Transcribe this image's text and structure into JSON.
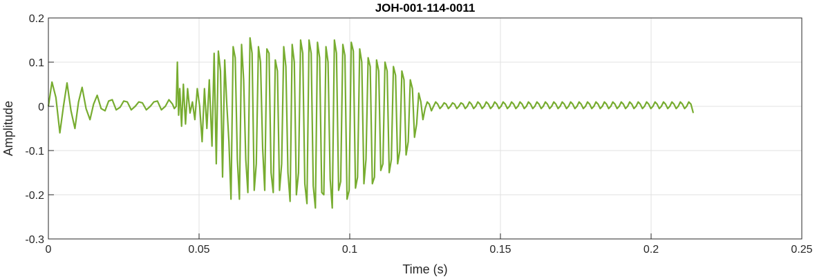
{
  "chart_data": {
    "type": "line",
    "title": "JOH-001-114-0011",
    "xlabel": "Time (s)",
    "ylabel": "Amplitude",
    "xlim": [
      0,
      0.25
    ],
    "ylim": [
      -0.3,
      0.2
    ],
    "x_ticks": [
      0,
      0.05,
      0.1,
      0.15,
      0.2,
      0.25
    ],
    "x_tick_labels": [
      "0",
      "0.05",
      "0.1",
      "0.15",
      "0.2",
      "0.25"
    ],
    "y_ticks": [
      -0.3,
      -0.2,
      -0.1,
      0,
      0.1,
      0.2
    ],
    "y_tick_labels": [
      "-0.3",
      "-0.2",
      "-0.1",
      "0",
      "0.1",
      "0.2"
    ],
    "grid": true,
    "line_color": "#77ac30",
    "series": [
      {
        "x": [
          0.0,
          0.0012,
          0.0025,
          0.0038,
          0.005,
          0.0062,
          0.0075,
          0.0088,
          0.01,
          0.0112,
          0.0125,
          0.0138,
          0.015,
          0.0162,
          0.0175,
          0.0188,
          0.02,
          0.0212,
          0.0225,
          0.0238,
          0.025,
          0.0262,
          0.0275,
          0.0288,
          0.03,
          0.0312,
          0.0325,
          0.0338,
          0.035,
          0.0362,
          0.0375,
          0.0388,
          0.04,
          0.0412,
          0.0418,
          0.0424,
          0.0428,
          0.0432,
          0.0436,
          0.0442,
          0.0448,
          0.0455,
          0.0462,
          0.047,
          0.0478,
          0.0486,
          0.0494,
          0.0502,
          0.051,
          0.0518,
          0.0526,
          0.0534,
          0.0543,
          0.055,
          0.0557,
          0.0564,
          0.0571,
          0.0578,
          0.0585,
          0.0592,
          0.0599,
          0.0606,
          0.0613,
          0.062,
          0.0627,
          0.0634,
          0.0641,
          0.0648,
          0.0655,
          0.0662,
          0.0669,
          0.0676,
          0.0683,
          0.069,
          0.0697,
          0.0704,
          0.0711,
          0.0718,
          0.0725,
          0.0732,
          0.0739,
          0.0746,
          0.0753,
          0.076,
          0.0767,
          0.0774,
          0.0781,
          0.0788,
          0.0795,
          0.0802,
          0.0809,
          0.0816,
          0.0823,
          0.083,
          0.0837,
          0.0844,
          0.0851,
          0.0858,
          0.0865,
          0.0872,
          0.0879,
          0.0886,
          0.0893,
          0.09,
          0.0907,
          0.0914,
          0.0921,
          0.0928,
          0.0935,
          0.0942,
          0.0949,
          0.0956,
          0.0963,
          0.097,
          0.0977,
          0.0984,
          0.0991,
          0.0998,
          0.1005,
          0.1012,
          0.1019,
          0.1026,
          0.1033,
          0.104,
          0.1047,
          0.1054,
          0.1061,
          0.1068,
          0.1075,
          0.1082,
          0.1089,
          0.1096,
          0.1103,
          0.111,
          0.1117,
          0.1124,
          0.1131,
          0.1138,
          0.1145,
          0.1152,
          0.1159,
          0.1166,
          0.1173,
          0.118,
          0.1187,
          0.1194,
          0.1201,
          0.1208,
          0.1215,
          0.1222,
          0.1229,
          0.1236,
          0.1243,
          0.125,
          0.1257,
          0.1264,
          0.1271,
          0.1278,
          0.1285,
          0.1292,
          0.1299,
          0.1306,
          0.1313,
          0.132,
          0.1327,
          0.1334,
          0.1341,
          0.1348,
          0.1355,
          0.1362,
          0.1369,
          0.1376,
          0.1383,
          0.139,
          0.1397,
          0.1404,
          0.1411,
          0.1418,
          0.1425,
          0.1432,
          0.1439,
          0.1446,
          0.1453,
          0.146,
          0.1467,
          0.1474,
          0.1481,
          0.1488,
          0.1495,
          0.1502,
          0.1509,
          0.1516,
          0.1523,
          0.153,
          0.1537,
          0.1544,
          0.1551,
          0.1558,
          0.1565,
          0.1572,
          0.1579,
          0.1586,
          0.1593,
          0.16,
          0.1607,
          0.1614,
          0.1621,
          0.1628,
          0.1635,
          0.1642,
          0.1649,
          0.1656,
          0.1663,
          0.167,
          0.1677,
          0.1684,
          0.1691,
          0.1698,
          0.1705,
          0.1712,
          0.1719,
          0.1726,
          0.1733,
          0.174,
          0.1747,
          0.1754,
          0.1761,
          0.1768,
          0.1775,
          0.1782,
          0.1789,
          0.1796,
          0.1803,
          0.181,
          0.1817,
          0.1824,
          0.1831,
          0.1838,
          0.1845,
          0.1852,
          0.1859,
          0.1866,
          0.1873,
          0.188,
          0.1887,
          0.1894,
          0.1901,
          0.1908,
          0.1915,
          0.1922,
          0.1929,
          0.1936,
          0.1943,
          0.195,
          0.1957,
          0.1964,
          0.1971,
          0.1978,
          0.1985,
          0.1992,
          0.1999,
          0.2006,
          0.2013,
          0.202,
          0.2027,
          0.2034,
          0.2041,
          0.2048,
          0.2055,
          0.2062,
          0.2069,
          0.2076,
          0.2083,
          0.209,
          0.2097,
          0.2104,
          0.2111,
          0.2118,
          0.2125,
          0.2132,
          0.214
        ],
        "y": [
          0.0,
          0.055,
          0.02,
          -0.06,
          0.0,
          0.053,
          -0.01,
          -0.05,
          0.01,
          0.043,
          -0.005,
          -0.03,
          0.005,
          0.025,
          -0.005,
          -0.01,
          0.012,
          0.015,
          -0.008,
          -0.002,
          0.012,
          0.01,
          -0.008,
          0.0,
          0.01,
          0.008,
          -0.008,
          0.0,
          0.01,
          0.012,
          -0.008,
          0.0,
          0.015,
          0.005,
          -0.005,
          0.0,
          0.1,
          -0.02,
          0.04,
          -0.045,
          0.05,
          -0.04,
          0.04,
          -0.015,
          0.01,
          -0.03,
          0.04,
          0.0,
          -0.08,
          0.04,
          -0.05,
          0.06,
          -0.09,
          0.12,
          -0.13,
          0.125,
          0.08,
          -0.16,
          0.105,
          0.005,
          -0.08,
          -0.21,
          0.135,
          0.11,
          -0.12,
          -0.21,
          0.14,
          0.06,
          -0.12,
          -0.195,
          0.155,
          0.12,
          -0.19,
          -0.13,
          0.135,
          0.1,
          -0.095,
          -0.19,
          0.13,
          0.12,
          -0.15,
          -0.195,
          0.105,
          0.08,
          -0.19,
          -0.13,
          0.135,
          0.09,
          -0.15,
          -0.215,
          0.14,
          0.1,
          -0.2,
          -0.15,
          0.15,
          0.12,
          -0.175,
          -0.22,
          0.15,
          0.12,
          -0.18,
          -0.23,
          0.145,
          0.11,
          -0.195,
          -0.2,
          0.135,
          0.1,
          -0.165,
          -0.23,
          0.15,
          0.12,
          -0.19,
          -0.17,
          0.14,
          0.115,
          -0.21,
          -0.19,
          0.145,
          0.125,
          -0.185,
          -0.16,
          0.13,
          0.1,
          -0.175,
          -0.12,
          0.11,
          0.09,
          -0.175,
          -0.16,
          0.105,
          0.08,
          -0.145,
          -0.13,
          0.1,
          0.08,
          -0.15,
          -0.12,
          0.09,
          0.07,
          -0.13,
          -0.1,
          0.08,
          0.06,
          -0.11,
          -0.08,
          0.06,
          0.04,
          -0.07,
          -0.04,
          0.03,
          0.01,
          -0.03,
          -0.005,
          0.01,
          0.005,
          -0.01,
          0.0,
          0.01,
          0.005,
          -0.005,
          0.0,
          0.008,
          0.005,
          -0.005,
          0.0,
          0.008,
          0.005,
          -0.005,
          0.0,
          0.008,
          0.005,
          -0.005,
          0.0,
          0.01,
          0.005,
          -0.005,
          0.0,
          0.01,
          0.005,
          -0.005,
          0.0,
          0.01,
          0.005,
          -0.005,
          0.0,
          0.01,
          0.005,
          -0.005,
          0.0,
          0.01,
          0.005,
          -0.005,
          0.0,
          0.01,
          0.005,
          -0.005,
          0.0,
          0.01,
          0.005,
          -0.005,
          0.0,
          0.01,
          0.005,
          -0.005,
          0.0,
          0.01,
          0.005,
          -0.005,
          0.0,
          0.01,
          0.005,
          -0.005,
          0.0,
          0.01,
          0.005,
          -0.005,
          0.0,
          0.01,
          0.005,
          -0.005,
          0.0,
          0.01,
          0.005,
          -0.005,
          0.0,
          0.01,
          0.005,
          -0.005,
          0.0,
          0.01,
          0.005,
          -0.005,
          0.0,
          0.01,
          0.005,
          -0.005,
          0.0,
          0.01,
          0.005,
          -0.005,
          0.0,
          0.01,
          0.005,
          -0.005,
          0.0,
          0.01,
          0.005,
          -0.005,
          0.0,
          0.01,
          0.005,
          -0.005,
          0.0,
          0.01,
          0.005,
          -0.005,
          0.0,
          0.01,
          0.005,
          -0.005,
          0.0,
          0.01,
          0.005,
          -0.005,
          0.0,
          0.01,
          0.005,
          -0.005,
          0.0,
          0.01,
          0.005,
          -0.005,
          0.0,
          0.01,
          0.005,
          -0.005,
          0.0,
          0.01,
          0.005,
          -0.015
        ]
      }
    ]
  }
}
